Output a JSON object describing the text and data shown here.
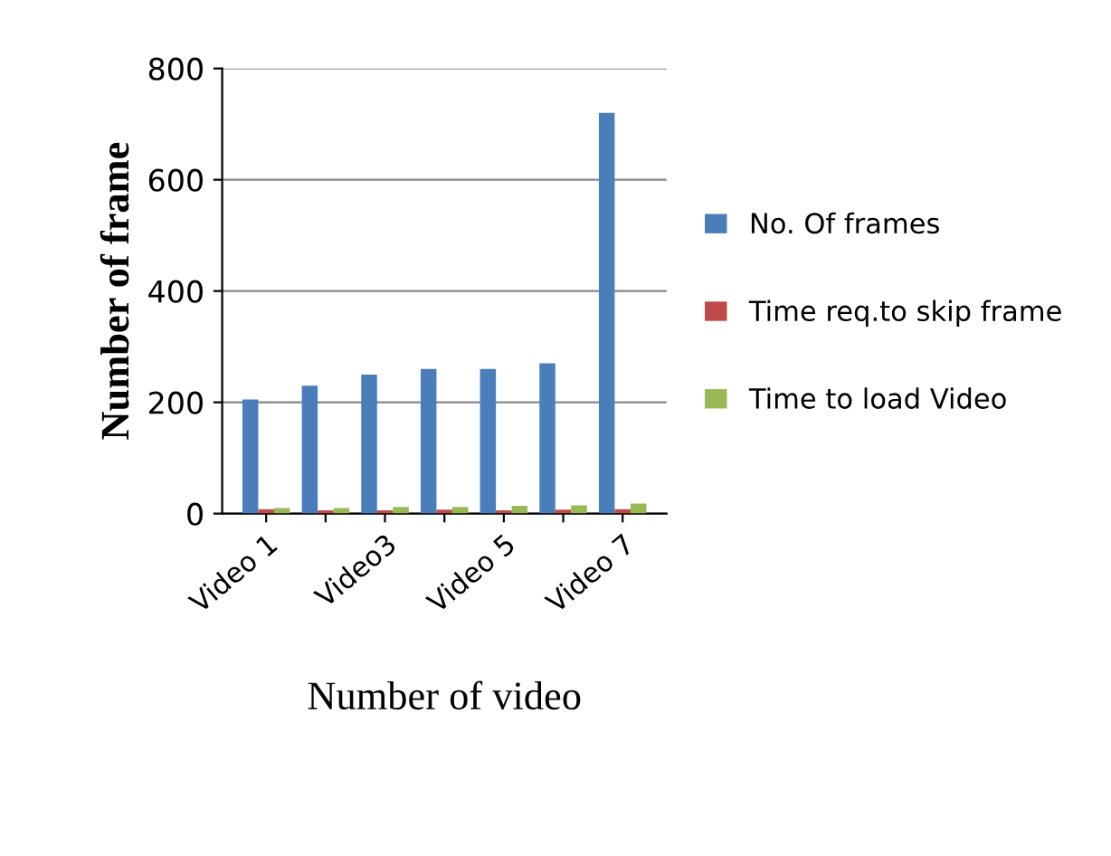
{
  "chart_data": {
    "type": "bar",
    "xlabel": "Number of video",
    "ylabel": "Number of frame",
    "categories": [
      "Video 1",
      null,
      "Video3",
      null,
      "Video 5",
      null,
      "Video 7"
    ],
    "series": [
      {
        "name": "No. Of frames",
        "color": "#4a7ebb",
        "values": [
          205,
          230,
          250,
          260,
          260,
          270,
          720
        ]
      },
      {
        "name": "Time req.to skip frame",
        "color": "#be4b48",
        "values": [
          8,
          6,
          6,
          7,
          6,
          7,
          8
        ]
      },
      {
        "name": "Time to load Video",
        "color": "#98b954",
        "values": [
          10,
          10,
          12,
          12,
          14,
          15,
          18
        ]
      }
    ],
    "ylim": [
      0,
      800
    ],
    "yticks": [
      0,
      200,
      400,
      600,
      800
    ],
    "grid": "y",
    "legend": "right"
  }
}
